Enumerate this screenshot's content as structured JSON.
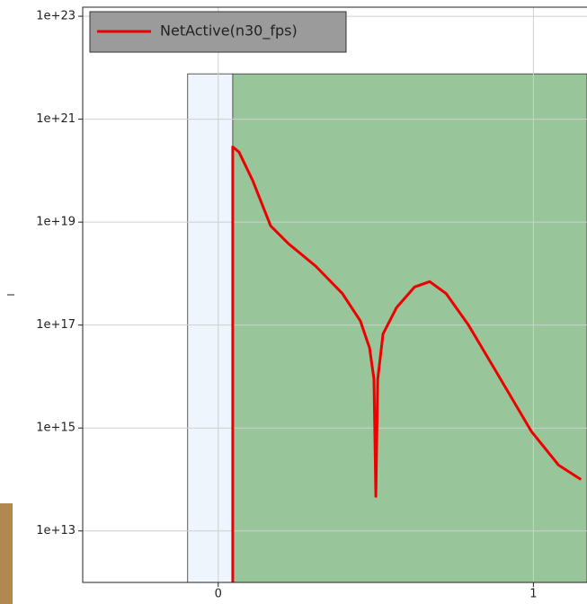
{
  "chart_data": {
    "type": "line",
    "y_scale": "log",
    "grid": true,
    "xlim": [
      -0.43,
      1.17
    ],
    "ylim": [
      1000000000000.0,
      1.5e+23
    ],
    "xticks": [
      0,
      1
    ],
    "yticks": [
      {
        "value": 10000000000000.0,
        "label": "1e+13"
      },
      {
        "value": 1000000000000000.0,
        "label": "1e+15"
      },
      {
        "value": 1e+17,
        "label": "1e+17"
      },
      {
        "value": 1e+19,
        "label": "1e+19"
      },
      {
        "value": 1e+21,
        "label": "1e+21"
      },
      {
        "value": 1e+23,
        "label": "1e+23"
      }
    ],
    "spans": [
      {
        "x": [
          -0.097,
          0.046
        ],
        "top": 7.6e+21,
        "color": "#eef5fc"
      },
      {
        "x": [
          0.046,
          1.17
        ],
        "top": 7.6e+21,
        "color": "#99c59a"
      }
    ],
    "series": [
      {
        "name": "NetActive(n30_fps)",
        "color": "#ee0000",
        "x": [
          0.046,
          0.046,
          0.066,
          0.109,
          0.166,
          0.223,
          0.309,
          0.394,
          0.451,
          0.48,
          0.494,
          0.5,
          0.506,
          0.523,
          0.566,
          0.623,
          0.671,
          0.723,
          0.794,
          0.88,
          0.994,
          1.08,
          1.151
        ],
        "values": [
          1000000000000.0,
          2.9e+20,
          2.3e+20,
          6.5e+19,
          8.5e+18,
          3.8e+18,
          1.4e+18,
          4.1e+17,
          1.2e+17,
          3.6e+16,
          8900000000000000.0,
          47000000000000.0,
          8900000000000000.0,
          6.7e+16,
          2.2e+17,
          5.5e+17,
          7e+17,
          4.1e+17,
          1e+17,
          1.3e+16,
          850000000000000.0,
          190000000000000.0,
          100000000000000.0
        ]
      }
    ]
  }
}
